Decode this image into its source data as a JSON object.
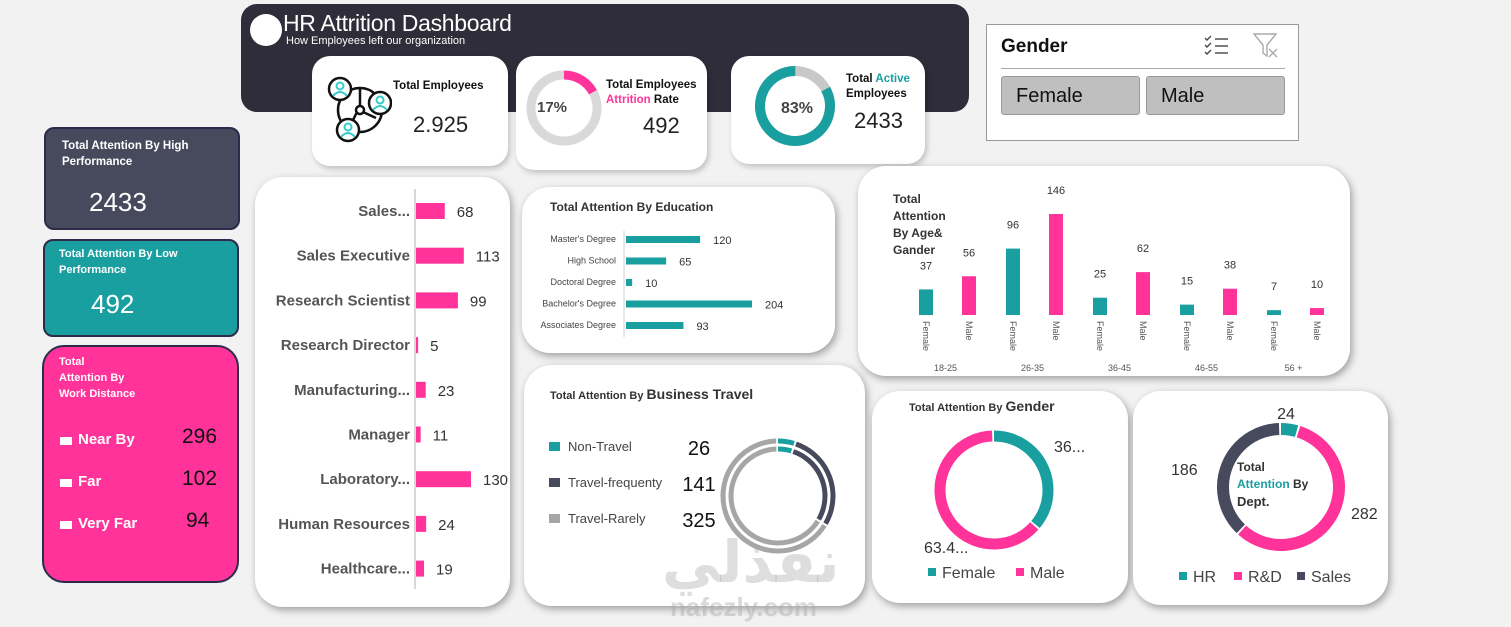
{
  "header": {
    "title": "HR Attrition Dashboard",
    "subtitle": "How Employees left our organization"
  },
  "kpis": {
    "total_employees": {
      "label": "Total Employees",
      "value": "2.925",
      "icon": "people-network-icon"
    },
    "attrition": {
      "label_line1": "Total Employees",
      "label_highlight": "Attrition",
      "label_rest": " Rate",
      "percent_label": "17%",
      "percent": 17,
      "value": "492"
    },
    "active": {
      "label_prefix": "Total ",
      "label_highlight": "Active",
      "label_line2": "Employees",
      "percent_label": "83%",
      "percent": 83,
      "value": "2433"
    }
  },
  "slicer": {
    "title": "Gender",
    "multi_select_icon": "multi-select-icon",
    "clear_filter_icon": "clear-filter-icon",
    "options": [
      "Female",
      "Male"
    ]
  },
  "side_cards": {
    "high": {
      "title": "Total Attention By High Performance",
      "value": "2433"
    },
    "low": {
      "title": "Total Attention By Low Performance",
      "value": "492"
    },
    "distance": {
      "title_lines": [
        "Total",
        "Attention By",
        "Work Distance"
      ],
      "rows": [
        {
          "label": "Near By",
          "value": "296"
        },
        {
          "label": "Far",
          "value": "102"
        },
        {
          "label": "Very Far",
          "value": "94"
        }
      ]
    }
  },
  "colors": {
    "teal": "#1a9fa0",
    "pink": "#ff3399",
    "dark": "#474a5c",
    "navy": "#2e2d39",
    "gray": "#a6a6a6"
  },
  "chart_data": [
    {
      "id": "job_role",
      "type": "bar",
      "orientation": "horizontal",
      "title": "",
      "categories": [
        "Sales...",
        "Sales Executive",
        "Research Scientist",
        "Research Director",
        "Manufacturing...",
        "Manager",
        "Laboratory...",
        "Human Resources",
        "Healthcare..."
      ],
      "values": [
        68,
        113,
        99,
        5,
        23,
        11,
        130,
        24,
        19
      ],
      "xlim": [
        0,
        130
      ]
    },
    {
      "id": "education",
      "type": "bar",
      "orientation": "horizontal",
      "title": "Total Attention By Education",
      "categories": [
        "Master's Degree",
        "High School",
        "Doctoral Degree",
        "Bachelor's Degree",
        "Associates Degree"
      ],
      "values": [
        120,
        65,
        10,
        204,
        93
      ],
      "xlim": [
        0,
        204
      ]
    },
    {
      "id": "age_gender",
      "type": "bar",
      "title": "Total Attention By Age& Gander",
      "groups": [
        "18-25",
        "26-35",
        "36-45",
        "46-55",
        "56 +"
      ],
      "sub_categories": [
        "Female",
        "Male"
      ],
      "series": [
        {
          "name": "Female",
          "values": [
            37,
            96,
            25,
            15,
            7
          ]
        },
        {
          "name": "Male",
          "values": [
            56,
            146,
            62,
            38,
            10
          ]
        }
      ],
      "ylim": [
        0,
        146
      ]
    },
    {
      "id": "business_travel",
      "type": "pie",
      "variant": "double-ring-donut",
      "title_prefix": "Total Attention By ",
      "title_emph": "Business Travel",
      "categories": [
        "Non-Travel",
        "Travel-frequenty",
        "Travel-Rarely"
      ],
      "values": [
        26,
        141,
        325
      ]
    },
    {
      "id": "gender",
      "type": "pie",
      "variant": "donut",
      "title_prefix": "Total Attention By ",
      "title_emph": "Gender",
      "categories": [
        "Female",
        "Male"
      ],
      "values": [
        36.6,
        63.4
      ],
      "data_labels": [
        "36...",
        "63.4..."
      ]
    },
    {
      "id": "department",
      "type": "pie",
      "variant": "donut",
      "center_label": {
        "line1": "Total",
        "highlight": "Attention",
        "rest": " By",
        "line3": "Dept."
      },
      "categories": [
        "HR",
        "R&D",
        "Sales"
      ],
      "values": [
        24,
        282,
        186
      ],
      "data_labels": [
        "24",
        "282",
        "186"
      ]
    }
  ],
  "watermark": {
    "arabic": "نفذلي",
    "latin": "nafezly.com"
  }
}
